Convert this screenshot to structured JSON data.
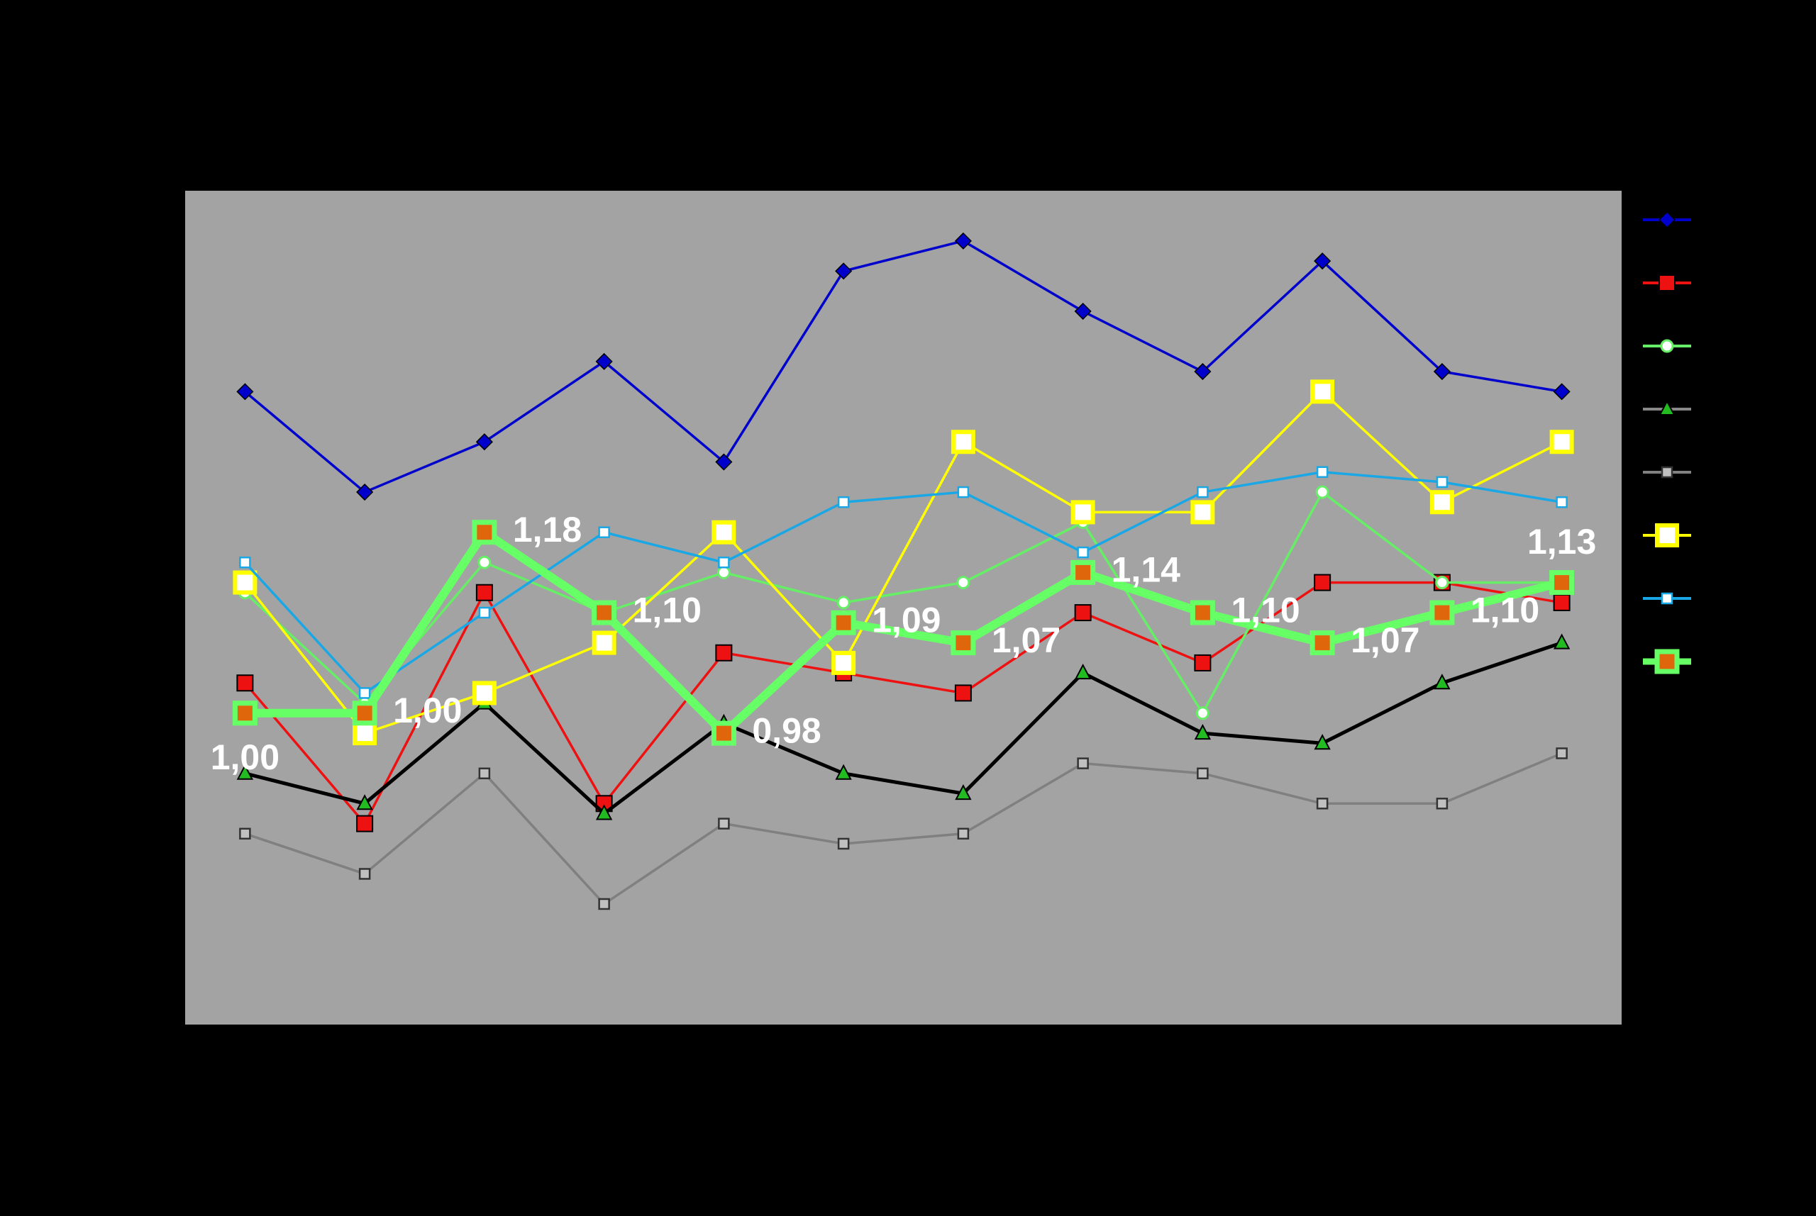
{
  "chart_data": {
    "type": "line",
    "categories": [
      null,
      null,
      null,
      null,
      null,
      null,
      null,
      null,
      null,
      null,
      null,
      null
    ],
    "ylim": [
      0.69,
      1.52
    ],
    "legend": "right",
    "series": [
      {
        "color": "#0000cc",
        "marker": "diamond",
        "marker_fill": "#0000cc",
        "values": [
          1.32,
          1.22,
          1.27,
          1.35,
          1.25,
          1.44,
          1.47,
          1.4,
          1.34,
          1.45,
          1.34,
          1.32
        ]
      },
      {
        "color": "#ee1111",
        "marker": "square",
        "marker_fill": "#ee1111",
        "values": [
          1.03,
          0.89,
          1.12,
          0.91,
          1.06,
          1.04,
          1.02,
          1.1,
          1.05,
          1.13,
          1.13,
          1.11
        ]
      },
      {
        "color": "#66ee66",
        "marker": "circle",
        "marker_fill": "#ffffff",
        "values": [
          1.12,
          1.01,
          1.15,
          1.1,
          1.14,
          1.11,
          1.13,
          1.19,
          1.0,
          1.22,
          1.13,
          1.13
        ]
      },
      {
        "color": "#000000",
        "marker": "triangle",
        "marker_fill": "#22bb22",
        "values": [
          0.94,
          0.91,
          1.01,
          0.9,
          0.99,
          0.94,
          0.92,
          1.04,
          0.98,
          0.97,
          1.03,
          1.07
        ]
      },
      {
        "color": "#808080",
        "marker": "small-square",
        "marker_fill": "#c0c0c0",
        "values": [
          0.88,
          0.84,
          0.94,
          0.81,
          0.89,
          0.87,
          0.88,
          0.95,
          0.94,
          0.91,
          0.91,
          0.96
        ]
      },
      {
        "color": "#ffff00",
        "marker": "big-square",
        "marker_fill": "#ffffff",
        "values": [
          1.13,
          0.98,
          1.02,
          1.07,
          1.18,
          1.05,
          1.27,
          1.2,
          1.2,
          1.32,
          1.21,
          1.27
        ]
      },
      {
        "color": "#1aa7e6",
        "marker": "small-square",
        "marker_fill": "#ffffff",
        "values": [
          1.15,
          1.02,
          1.1,
          1.18,
          1.15,
          1.21,
          1.22,
          1.16,
          1.22,
          1.24,
          1.23,
          1.21
        ]
      },
      {
        "color": "#66ff66",
        "marker": "big-square",
        "marker_fill": "#e0660c",
        "values": [
          1.0,
          1.0,
          1.18,
          1.1,
          0.98,
          1.09,
          1.07,
          1.14,
          1.1,
          1.07,
          1.1,
          1.13
        ],
        "value_labels": [
          "1,00",
          "1,00",
          "1,18",
          "1,10",
          "0,98",
          "1,09",
          "1,07",
          "1,14",
          "1,10",
          "1,07",
          "1,10",
          "1,13"
        ]
      }
    ]
  }
}
